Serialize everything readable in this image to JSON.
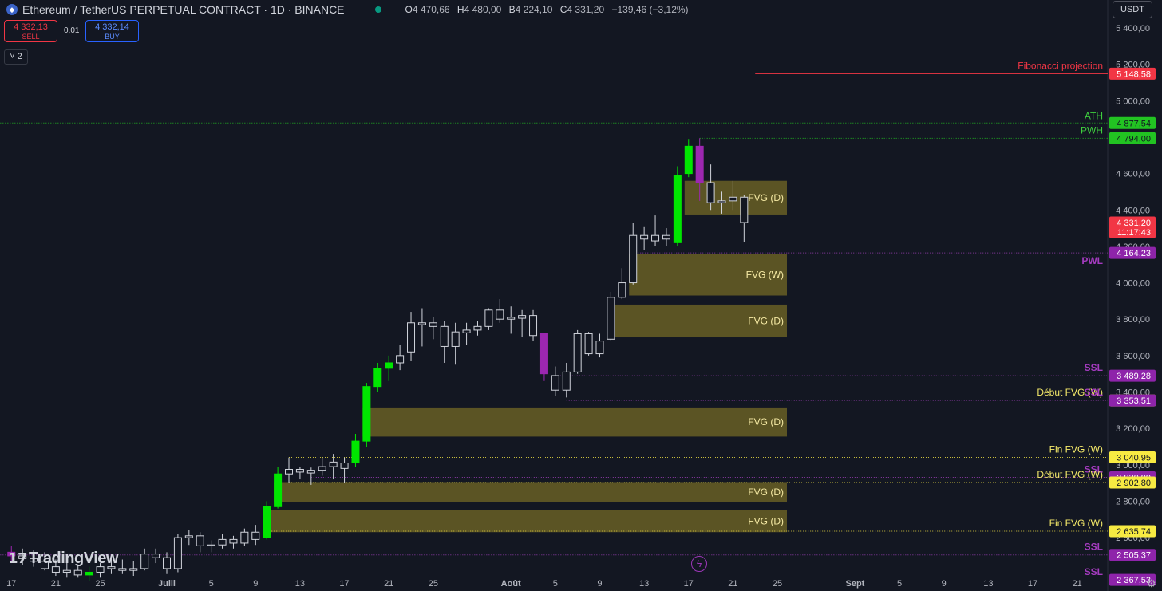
{
  "header": {
    "symbol_title": "Ethereum / TetherUS PERPETUAL CONTRACT · 1D · BINANCE",
    "ohlc": {
      "o_label": "O",
      "o": "4 470,66",
      "h_label": "H",
      "h": "4 480,00",
      "b_label": "B",
      "b": "4 224,10",
      "c_label": "C",
      "c": "4 331,20",
      "change": "−139,46 (−3,12%)"
    }
  },
  "trade": {
    "sell_price": "4 332,13",
    "sell_label": "SELL",
    "spread": "0,01",
    "buy_price": "4 332,14",
    "buy_label": "BUY"
  },
  "indicator_count": "2",
  "currency": "USDT",
  "logo_text": "TradingView",
  "colors": {
    "bull": "#00e600",
    "bear": "#9c27b0",
    "neutral_body": "#131722",
    "neutral_wick": "#d1d4dc",
    "fvg_fill": "#5f5725",
    "fvg_text": "#f5e9a3",
    "fib": "#f23645",
    "green_level": "#1e9e1e",
    "purple_level": "#9c27b0",
    "yellow_level": "#f3e24a"
  },
  "chart_data": {
    "type": "candlestick",
    "title": "Ethereum / TetherUS PERPETUAL CONTRACT · 1D · BINANCE",
    "y_ticks": [
      5400,
      5200,
      5000,
      4800,
      4600,
      4400,
      4200,
      4000,
      3800,
      3600,
      3400,
      3200,
      3000,
      2800,
      2600
    ],
    "y_tick_labels": [
      "5 400,00",
      "5 200,00",
      "5 000,00",
      "4 800,00",
      "4 600,00",
      "4 400,00",
      "4 200,00",
      "4 000,00",
      "3 800,00",
      "3 600,00",
      "3 400,00",
      "3 200,00",
      "3 000,00",
      "2 800,00",
      "2 600,00"
    ],
    "x_tick_labels": [
      {
        "label": "17",
        "day": -14
      },
      {
        "label": "21",
        "day": -10
      },
      {
        "label": "25",
        "day": -6
      },
      {
        "label": "Juill",
        "day": 0
      },
      {
        "label": "5",
        "day": 4
      },
      {
        "label": "9",
        "day": 8
      },
      {
        "label": "13",
        "day": 12
      },
      {
        "label": "17",
        "day": 16
      },
      {
        "label": "21",
        "day": 20
      },
      {
        "label": "25",
        "day": 24
      },
      {
        "label": "Août",
        "day": 31
      },
      {
        "label": "5",
        "day": 35
      },
      {
        "label": "9",
        "day": 39
      },
      {
        "label": "13",
        "day": 43
      },
      {
        "label": "17",
        "day": 47
      },
      {
        "label": "21",
        "day": 51
      },
      {
        "label": "25",
        "day": 55
      },
      {
        "label": "Sept",
        "day": 62
      },
      {
        "label": "5",
        "day": 66
      },
      {
        "label": "9",
        "day": 70
      },
      {
        "label": "13",
        "day": 74
      },
      {
        "label": "17",
        "day": 78
      },
      {
        "label": "21",
        "day": 82
      }
    ],
    "candles": [
      {
        "d": -14,
        "o": 2520,
        "h": 2555,
        "l": 2460,
        "c": 2500,
        "s": "bear"
      },
      {
        "d": -13,
        "o": 2500,
        "h": 2540,
        "l": 2450,
        "c": 2485,
        "s": "n"
      },
      {
        "d": -12,
        "o": 2485,
        "h": 2530,
        "l": 2440,
        "c": 2470,
        "s": "n"
      },
      {
        "d": -11,
        "o": 2470,
        "h": 2520,
        "l": 2420,
        "c": 2430,
        "s": "n"
      },
      {
        "d": -10,
        "o": 2440,
        "h": 2480,
        "l": 2390,
        "c": 2410,
        "s": "n"
      },
      {
        "d": -9,
        "o": 2410,
        "h": 2470,
        "l": 2380,
        "c": 2420,
        "s": "n"
      },
      {
        "d": -8,
        "o": 2420,
        "h": 2450,
        "l": 2380,
        "c": 2395,
        "s": "n"
      },
      {
        "d": -7,
        "o": 2395,
        "h": 2440,
        "l": 2360,
        "c": 2410,
        "s": "bull"
      },
      {
        "d": -6,
        "o": 2410,
        "h": 2460,
        "l": 2380,
        "c": 2440,
        "s": "n"
      },
      {
        "d": -5,
        "o": 2440,
        "h": 2490,
        "l": 2400,
        "c": 2430,
        "s": "n"
      },
      {
        "d": -4,
        "o": 2430,
        "h": 2480,
        "l": 2400,
        "c": 2420,
        "s": "n"
      },
      {
        "d": -3,
        "o": 2420,
        "h": 2470,
        "l": 2390,
        "c": 2430,
        "s": "n"
      },
      {
        "d": -2,
        "o": 2430,
        "h": 2540,
        "l": 2420,
        "c": 2510,
        "s": "n"
      },
      {
        "d": -1,
        "o": 2510,
        "h": 2540,
        "l": 2460,
        "c": 2490,
        "s": "n"
      },
      {
        "d": 0,
        "o": 2490,
        "h": 2520,
        "l": 2400,
        "c": 2430,
        "s": "n"
      },
      {
        "d": 1,
        "o": 2430,
        "h": 2620,
        "l": 2410,
        "c": 2600,
        "s": "n"
      },
      {
        "d": 2,
        "o": 2600,
        "h": 2640,
        "l": 2560,
        "c": 2610,
        "s": "n"
      },
      {
        "d": 3,
        "o": 2610,
        "h": 2630,
        "l": 2520,
        "c": 2555,
        "s": "n"
      },
      {
        "d": 4,
        "o": 2555,
        "h": 2585,
        "l": 2520,
        "c": 2560,
        "s": "n"
      },
      {
        "d": 5,
        "o": 2560,
        "h": 2620,
        "l": 2540,
        "c": 2590,
        "s": "n"
      },
      {
        "d": 6,
        "o": 2590,
        "h": 2610,
        "l": 2540,
        "c": 2570,
        "s": "n"
      },
      {
        "d": 7,
        "o": 2570,
        "h": 2650,
        "l": 2555,
        "c": 2630,
        "s": "n"
      },
      {
        "d": 8,
        "o": 2630,
        "h": 2670,
        "l": 2560,
        "c": 2590,
        "s": "n"
      },
      {
        "d": 9,
        "o": 2600,
        "h": 2800,
        "l": 2590,
        "c": 2770,
        "s": "bull"
      },
      {
        "d": 10,
        "o": 2770,
        "h": 2990,
        "l": 2760,
        "c": 2950,
        "s": "bull"
      },
      {
        "d": 11,
        "o": 2950,
        "h": 3040,
        "l": 2900,
        "c": 2975,
        "s": "n"
      },
      {
        "d": 12,
        "o": 2975,
        "h": 2990,
        "l": 2920,
        "c": 2960,
        "s": "n"
      },
      {
        "d": 13,
        "o": 2955,
        "h": 2985,
        "l": 2890,
        "c": 2970,
        "s": "n"
      },
      {
        "d": 14,
        "o": 2970,
        "h": 3040,
        "l": 2940,
        "c": 2990,
        "s": "n"
      },
      {
        "d": 15,
        "o": 2990,
        "h": 3060,
        "l": 2920,
        "c": 3015,
        "s": "n"
      },
      {
        "d": 16,
        "o": 2980,
        "h": 3040,
        "l": 2900,
        "c": 3010,
        "s": "n"
      },
      {
        "d": 17,
        "o": 3010,
        "h": 3170,
        "l": 2990,
        "c": 3130,
        "s": "bull"
      },
      {
        "d": 18,
        "o": 3130,
        "h": 3450,
        "l": 3100,
        "c": 3430,
        "s": "bull"
      },
      {
        "d": 19,
        "o": 3430,
        "h": 3560,
        "l": 3400,
        "c": 3530,
        "s": "bull"
      },
      {
        "d": 20,
        "o": 3530,
        "h": 3600,
        "l": 3460,
        "c": 3560,
        "s": "bull"
      },
      {
        "d": 21,
        "o": 3560,
        "h": 3660,
        "l": 3520,
        "c": 3600,
        "s": "n"
      },
      {
        "d": 22,
        "o": 3620,
        "h": 3840,
        "l": 3570,
        "c": 3780,
        "s": "n"
      },
      {
        "d": 23,
        "o": 3780,
        "h": 3860,
        "l": 3650,
        "c": 3770,
        "s": "n"
      },
      {
        "d": 24,
        "o": 3780,
        "h": 3810,
        "l": 3690,
        "c": 3760,
        "s": "n"
      },
      {
        "d": 25,
        "o": 3760,
        "h": 3790,
        "l": 3560,
        "c": 3650,
        "s": "n"
      },
      {
        "d": 26,
        "o": 3650,
        "h": 3780,
        "l": 3550,
        "c": 3730,
        "s": "n"
      },
      {
        "d": 27,
        "o": 3725,
        "h": 3780,
        "l": 3660,
        "c": 3740,
        "s": "n"
      },
      {
        "d": 28,
        "o": 3740,
        "h": 3790,
        "l": 3710,
        "c": 3760,
        "s": "n"
      },
      {
        "d": 29,
        "o": 3760,
        "h": 3860,
        "l": 3740,
        "c": 3850,
        "s": "n"
      },
      {
        "d": 30,
        "o": 3850,
        "h": 3910,
        "l": 3780,
        "c": 3800,
        "s": "n"
      },
      {
        "d": 31,
        "o": 3800,
        "h": 3870,
        "l": 3720,
        "c": 3810,
        "s": "n"
      },
      {
        "d": 32,
        "o": 3805,
        "h": 3850,
        "l": 3700,
        "c": 3820,
        "s": "n"
      },
      {
        "d": 33,
        "o": 3820,
        "h": 3850,
        "l": 3680,
        "c": 3710,
        "s": "n"
      },
      {
        "d": 34,
        "o": 3720,
        "h": 3720,
        "l": 3460,
        "c": 3500,
        "s": "bear"
      },
      {
        "d": 35,
        "o": 3490,
        "h": 3540,
        "l": 3380,
        "c": 3410,
        "s": "n"
      },
      {
        "d": 36,
        "o": 3410,
        "h": 3560,
        "l": 3370,
        "c": 3510,
        "s": "n"
      },
      {
        "d": 37,
        "o": 3510,
        "h": 3740,
        "l": 3500,
        "c": 3720,
        "s": "n"
      },
      {
        "d": 38,
        "o": 3720,
        "h": 3730,
        "l": 3600,
        "c": 3610,
        "s": "n"
      },
      {
        "d": 39,
        "o": 3610,
        "h": 3720,
        "l": 3590,
        "c": 3680,
        "s": "n"
      },
      {
        "d": 40,
        "o": 3690,
        "h": 3950,
        "l": 3680,
        "c": 3920,
        "s": "n"
      },
      {
        "d": 41,
        "o": 3920,
        "h": 4080,
        "l": 3910,
        "c": 4000,
        "s": "n"
      },
      {
        "d": 42,
        "o": 4000,
        "h": 4330,
        "l": 3990,
        "c": 4260,
        "s": "n"
      },
      {
        "d": 43,
        "o": 4260,
        "h": 4310,
        "l": 4180,
        "c": 4240,
        "s": "n"
      },
      {
        "d": 44,
        "o": 4230,
        "h": 4370,
        "l": 4200,
        "c": 4260,
        "s": "n"
      },
      {
        "d": 45,
        "o": 4260,
        "h": 4300,
        "l": 4200,
        "c": 4240,
        "s": "n"
      },
      {
        "d": 46,
        "o": 4220,
        "h": 4640,
        "l": 4200,
        "c": 4590,
        "s": "bull"
      },
      {
        "d": 47,
        "o": 4600,
        "h": 4790,
        "l": 4580,
        "c": 4750,
        "s": "bull"
      },
      {
        "d": 48,
        "o": 4750,
        "h": 4794,
        "l": 4450,
        "c": 4550,
        "s": "bear"
      },
      {
        "d": 49,
        "o": 4550,
        "h": 4650,
        "l": 4400,
        "c": 4440,
        "s": "n"
      },
      {
        "d": 50,
        "o": 4440,
        "h": 4500,
        "l": 4380,
        "c": 4450,
        "s": "n"
      },
      {
        "d": 51,
        "o": 4450,
        "h": 4560,
        "l": 4400,
        "c": 4470,
        "s": "n"
      },
      {
        "d": 52,
        "o": 4470,
        "h": 4480,
        "l": 4224,
        "c": 4331,
        "s": "n"
      }
    ],
    "fvg_zones": [
      {
        "label": "FVG (D)",
        "from_day": 47,
        "top": 4560,
        "bottom": 4375
      },
      {
        "label": "FVG (W)",
        "from_day": 42,
        "top": 4160,
        "bottom": 3930
      },
      {
        "label": "FVG (D)",
        "from_day": 40,
        "top": 3880,
        "bottom": 3700
      },
      {
        "label": "FVG (D)",
        "from_day": 18,
        "top": 3315,
        "bottom": 3155
      },
      {
        "label": "FVG (D)",
        "from_day": 10,
        "top": 2905,
        "bottom": 2795
      },
      {
        "label": "FVG (D)",
        "from_day": 9,
        "top": 2750,
        "bottom": 2630
      }
    ],
    "levels": [
      {
        "name": "ATH",
        "value": 4877.54,
        "label": "4 877,54",
        "kind": "green",
        "from_day": -15,
        "style": "dotted",
        "text_class": "green"
      },
      {
        "name": "PWH",
        "value": 4794.0,
        "label": "4 794,00",
        "kind": "green",
        "from_day": 48,
        "style": "dotted",
        "text_class": "green"
      },
      {
        "name": "Fibonacci projection",
        "value": 5148.58,
        "label": "5 148,58",
        "kind": "fib",
        "from_day": 53,
        "style": "solid",
        "text_class": "red"
      },
      {
        "name": "",
        "value": 4331.2,
        "label": "4 331,20",
        "sub": "11:17:43",
        "kind": "price",
        "from_day": null,
        "style": "none",
        "text_class": "red"
      },
      {
        "name": "PWL",
        "value": 4164.23,
        "label": "4 164,23",
        "kind": "purple",
        "from_day": 42,
        "style": "dotted",
        "text_class": "purple"
      },
      {
        "name": "SSL",
        "value": 3489.28,
        "label": "3 489,28",
        "kind": "purple",
        "from_day": 35,
        "style": "dotted",
        "text_class": "purple"
      },
      {
        "name": "Début FVG (W)",
        "value": 3353.51,
        "label": "3 353,51",
        "kind": "yellow",
        "from_day": null,
        "style": "none",
        "text_class": "yellow"
      },
      {
        "name": "SSL",
        "value": 3353.51,
        "label": "3 353,51",
        "kind": "purple",
        "from_day": 36,
        "style": "dotted",
        "text_class": "purple"
      },
      {
        "name": "Fin FVG (W)",
        "value": 3040.95,
        "label": "3 040,95",
        "kind": "yellow",
        "from_day": 11,
        "style": "dotted",
        "text_class": "yellow"
      },
      {
        "name": "SSL",
        "value": 2930.99,
        "label": "2 930,99",
        "kind": "purple",
        "from_day": 13,
        "style": "dotted",
        "text_class": "purple"
      },
      {
        "name": "Début FVG (W)",
        "value": 2902.8,
        "label": "2 902,80",
        "kind": "yellow",
        "from_day": 11,
        "style": "dotted",
        "text_class": "yellow"
      },
      {
        "name": "Fin FVG (W)",
        "value": 2635.74,
        "label": "2 635,74",
        "kind": "yellow",
        "from_day": 9,
        "style": "dotted",
        "text_class": "yellow"
      },
      {
        "name": "SSL",
        "value": 2505.37,
        "label": "2 505,37",
        "kind": "purple",
        "from_day": -15,
        "style": "dotted",
        "text_class": "purple"
      },
      {
        "name": "SSL",
        "value": 2367.53,
        "label": "2 367,53",
        "kind": "purple",
        "from_day": null,
        "style": "none",
        "text_class": "purple"
      }
    ]
  }
}
